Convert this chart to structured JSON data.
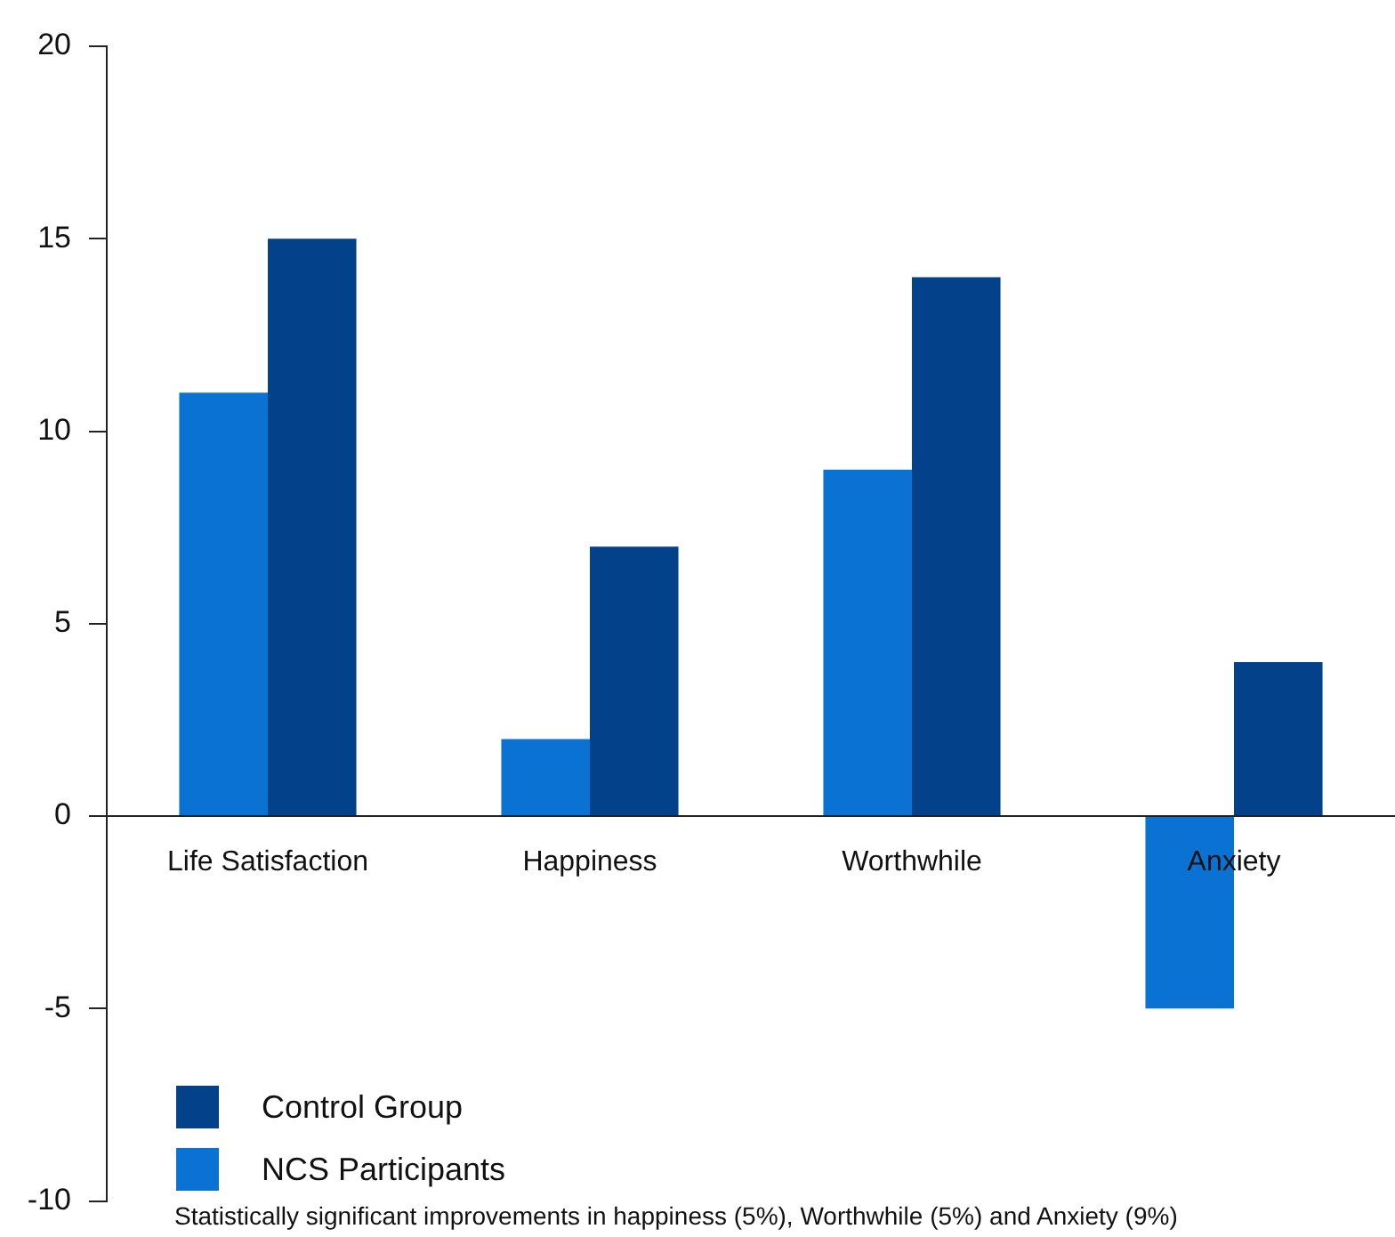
{
  "chart_data": {
    "type": "bar",
    "categories": [
      "Life Satisfaction",
      "Happiness",
      "Worthwhile",
      "Anxiety"
    ],
    "series": [
      {
        "name": "NCS Participants",
        "color": "#0a72d2",
        "values": [
          11,
          2,
          9,
          -5
        ]
      },
      {
        "name": "Control Group",
        "color": "#03418a",
        "values": [
          15,
          7,
          14,
          4
        ]
      }
    ],
    "ylim": [
      -10,
      20
    ],
    "yticks": [
      -10,
      -5,
      0,
      5,
      10,
      15,
      20
    ],
    "grid": false,
    "legend": "bottom left",
    "annotations": [
      "Statistically significant improvements in happiness (5%), Worthwhile (5%) and Anxiety (9%)"
    ]
  }
}
